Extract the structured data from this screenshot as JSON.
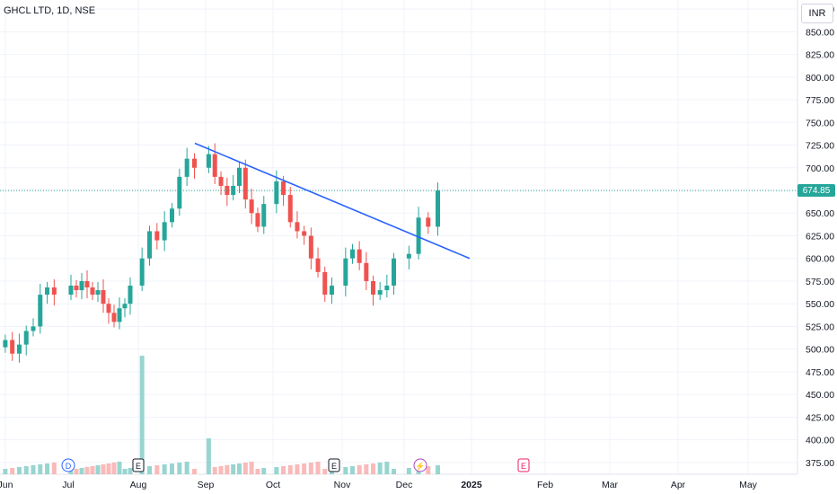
{
  "symbol_title": "GHCL LTD, 1D, NSE",
  "currency": "INR",
  "last_price_label": "674.85",
  "colors": {
    "up": "#26a69a",
    "down": "#ef5350",
    "trendline": "#2962ff",
    "grid": "#f0f3fa",
    "text": "#131722"
  },
  "event_markers": [
    {
      "label": "D",
      "near": "Jul",
      "kind": "dividend"
    },
    {
      "label": "E",
      "near": "Aug",
      "kind": "earnings"
    },
    {
      "label": "E",
      "near": "Nov",
      "kind": "earnings"
    },
    {
      "label": "⚡",
      "near": "Dec",
      "kind": "split"
    },
    {
      "label": "E",
      "near": "Feb",
      "kind": "earnings-upcoming"
    }
  ],
  "chart_data": {
    "type": "candlestick",
    "title": "GHCL LTD, 1D, NSE",
    "x_ticks": [
      "Jun",
      "Jul",
      "Aug",
      "Sep",
      "Oct",
      "Nov",
      "Dec",
      "2025",
      "Feb",
      "Mar",
      "Apr",
      "May"
    ],
    "y_ticks": [
      875,
      850,
      825,
      800,
      775,
      750,
      725,
      700,
      675,
      650,
      625,
      600,
      575,
      550,
      525,
      500,
      475,
      450,
      425,
      400,
      375
    ],
    "y_tick_labels": [
      "875.00",
      "850.00",
      "825.00",
      "800.00",
      "775.00",
      "750.00",
      "725.00",
      "700.00",
      "675.00",
      "650.00",
      "625.00",
      "600.00",
      "575.00",
      "550.00",
      "525.00",
      "500.00",
      "475.00",
      "450.00",
      "425.00",
      "400.00",
      "375.00"
    ],
    "ylim": [
      362,
      885
    ],
    "last_price": 674.85,
    "close_series": [
      {
        "month": "Jun",
        "close": 510
      },
      {
        "month": "Jun",
        "close": 495
      },
      {
        "month": "Jun",
        "close": 505
      },
      {
        "month": "Jun",
        "close": 520
      },
      {
        "month": "Jun",
        "close": 525
      },
      {
        "month": "Jun",
        "close": 560
      },
      {
        "month": "Jun",
        "close": 568
      },
      {
        "month": "Jun",
        "close": 560
      },
      {
        "month": "Jul",
        "close": 570
      },
      {
        "month": "Jul",
        "close": 565
      },
      {
        "month": "Jul",
        "close": 575
      },
      {
        "month": "Jul",
        "close": 568
      },
      {
        "month": "Jul",
        "close": 560
      },
      {
        "month": "Jul",
        "close": 565
      },
      {
        "month": "Jul",
        "close": 550
      },
      {
        "month": "Jul",
        "close": 540
      },
      {
        "month": "Jul",
        "close": 530
      },
      {
        "month": "Jul",
        "close": 545
      },
      {
        "month": "Jul",
        "close": 550
      },
      {
        "month": "Jul",
        "close": 570
      },
      {
        "month": "Aug",
        "close": 600
      },
      {
        "month": "Aug",
        "close": 630
      },
      {
        "month": "Aug",
        "close": 620
      },
      {
        "month": "Aug",
        "close": 640
      },
      {
        "month": "Aug",
        "close": 655
      },
      {
        "month": "Aug",
        "close": 690
      },
      {
        "month": "Aug",
        "close": 710
      },
      {
        "month": "Aug",
        "close": 700
      },
      {
        "month": "Sep",
        "close": 715
      },
      {
        "month": "Sep",
        "close": 690
      },
      {
        "month": "Sep",
        "close": 680
      },
      {
        "month": "Sep",
        "close": 670
      },
      {
        "month": "Sep",
        "close": 680
      },
      {
        "month": "Sep",
        "close": 700
      },
      {
        "month": "Sep",
        "close": 665
      },
      {
        "month": "Sep",
        "close": 650
      },
      {
        "month": "Sep",
        "close": 635
      },
      {
        "month": "Sep",
        "close": 660
      },
      {
        "month": "Oct",
        "close": 685
      },
      {
        "month": "Oct",
        "close": 670
      },
      {
        "month": "Oct",
        "close": 640
      },
      {
        "month": "Oct",
        "close": 630
      },
      {
        "month": "Oct",
        "close": 625
      },
      {
        "month": "Oct",
        "close": 600
      },
      {
        "month": "Oct",
        "close": 585
      },
      {
        "month": "Oct",
        "close": 560
      },
      {
        "month": "Oct",
        "close": 570
      },
      {
        "month": "Nov",
        "close": 600
      },
      {
        "month": "Nov",
        "close": 610
      },
      {
        "month": "Nov",
        "close": 595
      },
      {
        "month": "Nov",
        "close": 575
      },
      {
        "month": "Nov",
        "close": 560
      },
      {
        "month": "Nov",
        "close": 565
      },
      {
        "month": "Nov",
        "close": 570
      },
      {
        "month": "Nov",
        "close": 600
      },
      {
        "month": "Dec",
        "close": 605
      },
      {
        "month": "Dec",
        "close": 645
      },
      {
        "month": "Dec",
        "close": 635
      },
      {
        "month": "Dec",
        "close": 674.85
      }
    ],
    "trendline": {
      "start": {
        "month": "Aug",
        "price": 727
      },
      "end": {
        "month": "2025",
        "price": 600
      }
    },
    "volume_series": [
      {
        "month": "Aug",
        "level": "spike-high"
      },
      {
        "month": "Sep",
        "level": "spike-medium"
      }
    ]
  }
}
